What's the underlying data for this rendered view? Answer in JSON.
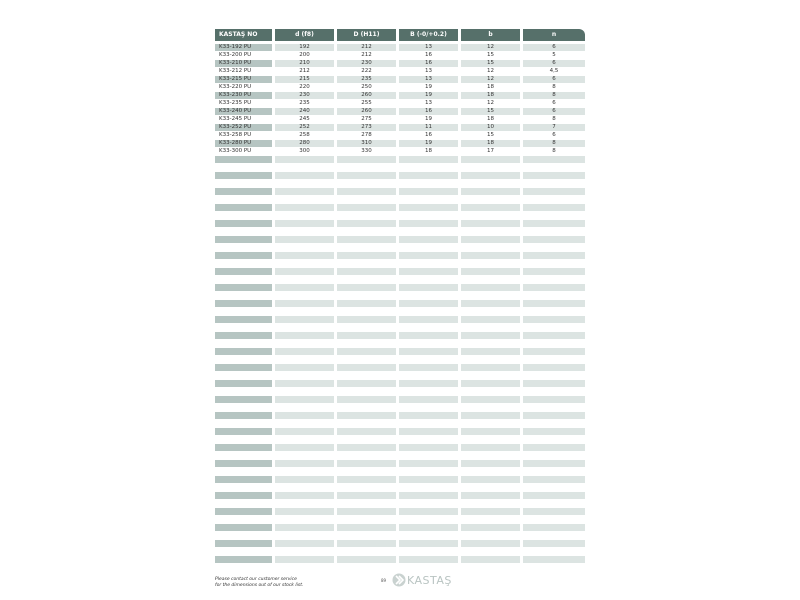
{
  "table": {
    "headers": [
      "KASTAŞ NO",
      "d (f8)",
      "D (H11)",
      "B (-0/+0.2)",
      "b",
      "n"
    ],
    "rows": [
      [
        "K33-192 PU",
        "192",
        "212",
        "13",
        "12",
        "6"
      ],
      [
        "K33-200 PU",
        "200",
        "212",
        "16",
        "15",
        "5"
      ],
      [
        "K33-210 PU",
        "210",
        "230",
        "16",
        "15",
        "6"
      ],
      [
        "K33-212 PU",
        "212",
        "222",
        "13",
        "12",
        "4,5"
      ],
      [
        "K33-215 PU",
        "215",
        "235",
        "13",
        "12",
        "6"
      ],
      [
        "K33-220 PU",
        "220",
        "250",
        "19",
        "18",
        "8"
      ],
      [
        "K33-230 PU",
        "230",
        "260",
        "19",
        "18",
        "8"
      ],
      [
        "K33-235 PU",
        "235",
        "255",
        "13",
        "12",
        "6"
      ],
      [
        "K33-240 PU",
        "240",
        "260",
        "16",
        "15",
        "6"
      ],
      [
        "K33-245 PU",
        "245",
        "275",
        "19",
        "18",
        "8"
      ],
      [
        "K33-252 PU",
        "252",
        "273",
        "11",
        "10",
        "7"
      ],
      [
        "K33-258 PU",
        "258",
        "278",
        "16",
        "15",
        "6"
      ],
      [
        "K33-280 PU",
        "280",
        "310",
        "19",
        "18",
        "8"
      ],
      [
        "K33-300 PU",
        "300",
        "330",
        "18",
        "17",
        "8"
      ]
    ]
  },
  "footer": {
    "note_line1": "Please contact our customer service",
    "note_line2": "for the dimensions out of our stock list.",
    "page_number": "89",
    "logo_text": "KASTAŞ"
  },
  "colors": {
    "header": "#56706a",
    "first_col_shade": "#b6c5c2",
    "row_shade": "#dce4e2"
  }
}
